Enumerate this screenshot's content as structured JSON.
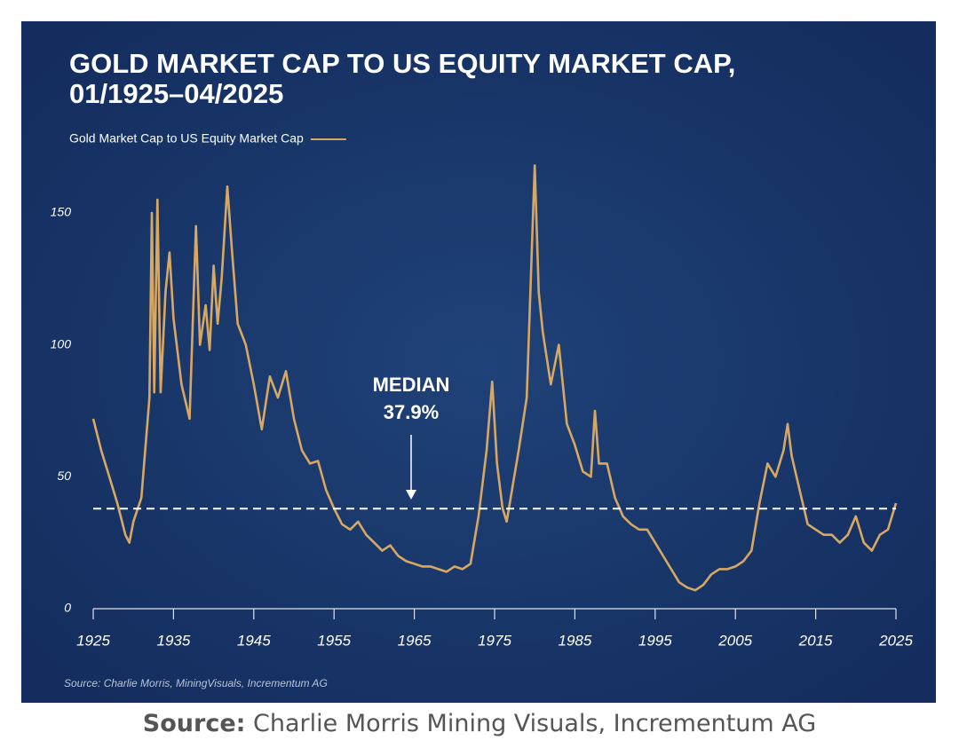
{
  "chart_data": {
    "type": "line",
    "title": [
      "GOLD MARKET CAP TO US EQUITY MARKET CAP,",
      "01/1925–04/2025"
    ],
    "source": "Source: Charlie Morris, MiningVisuals, Incrementum AG",
    "series": [
      {
        "name": "Gold Market Cap to US Equity Market Cap",
        "color": "#d8a862",
        "x": [
          1925,
          1926,
          1927,
          1928,
          1929,
          1929.5,
          1930,
          1931,
          1932,
          1932.3,
          1932.6,
          1933,
          1933.4,
          1934,
          1934.5,
          1935,
          1936,
          1937,
          1937.8,
          1938.3,
          1939,
          1939.5,
          1940,
          1940.5,
          1941,
          1941.7,
          1942.3,
          1943,
          1944,
          1945,
          1946,
          1947,
          1948,
          1949,
          1950,
          1951,
          1952,
          1953,
          1954,
          1955,
          1956,
          1957,
          1958,
          1959,
          1960,
          1961,
          1962,
          1963,
          1964,
          1965,
          1966,
          1967,
          1968,
          1969,
          1970,
          1971,
          1972,
          1973,
          1974,
          1974.7,
          1975.3,
          1976,
          1976.5,
          1977,
          1978,
          1979,
          1980,
          1980.5,
          1981,
          1982,
          1983,
          1984,
          1985,
          1986,
          1987,
          1987.5,
          1988,
          1989,
          1990,
          1991,
          1992,
          1993,
          1994,
          1995,
          1996,
          1997,
          1998,
          1999,
          2000,
          2001,
          2002,
          2003,
          2004,
          2005,
          2006,
          2007,
          2008,
          2009,
          2010,
          2011,
          2011.5,
          2012,
          2013,
          2014,
          2015,
          2016,
          2017,
          2018,
          2019,
          2020,
          2021,
          2022,
          2023,
          2024,
          2025
        ],
        "values": [
          72,
          60,
          50,
          40,
          28,
          25,
          33,
          42,
          80,
          150,
          82,
          155,
          82,
          120,
          135,
          110,
          85,
          72,
          145,
          100,
          115,
          98,
          130,
          108,
          125,
          160,
          135,
          108,
          100,
          85,
          68,
          88,
          80,
          90,
          72,
          60,
          55,
          56,
          45,
          38,
          32,
          30,
          33,
          28,
          25,
          22,
          24,
          20,
          18,
          17,
          16,
          16,
          15,
          14,
          16,
          15,
          17,
          35,
          60,
          86,
          55,
          38,
          33,
          42,
          60,
          80,
          168,
          120,
          105,
          85,
          100,
          70,
          62,
          52,
          50,
          75,
          55,
          55,
          42,
          35,
          32,
          30,
          30,
          25,
          20,
          15,
          10,
          8,
          7,
          9,
          13,
          15,
          15,
          16,
          18,
          22,
          40,
          55,
          50,
          60,
          70,
          58,
          45,
          32,
          30,
          28,
          28,
          25,
          28,
          35,
          25,
          22,
          28,
          30,
          40
        ]
      }
    ],
    "median": {
      "name": "MEDIAN",
      "value": 37.9,
      "label": "37.9%"
    },
    "xlim": [
      1925,
      2025
    ],
    "xticks": [
      1925,
      1935,
      1945,
      1955,
      1965,
      1975,
      1985,
      1995,
      2005,
      2015,
      2025
    ],
    "ylim": [
      0,
      170
    ],
    "yticks": [
      0,
      50,
      100,
      150
    ]
  },
  "caption": {
    "label": "Source:",
    "text": "Charlie Morris Mining Visuals, Incrementum AG"
  }
}
